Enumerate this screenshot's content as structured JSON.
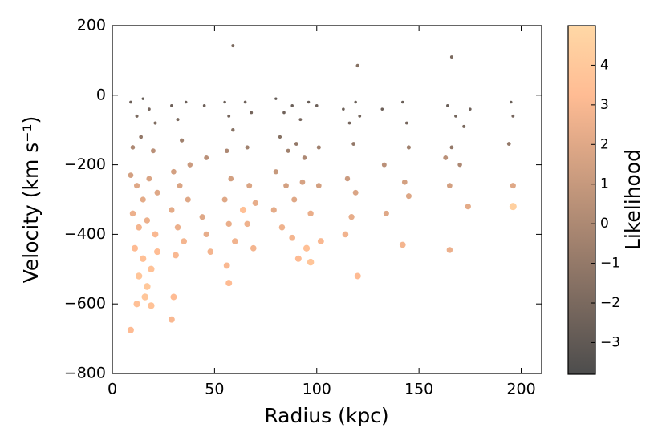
{
  "chart_data": {
    "type": "scatter",
    "xlabel": "Radius (kpc)",
    "ylabel": "Velocity (km s⁻¹)",
    "xlim": [
      0,
      210
    ],
    "xticks": [
      0,
      50,
      100,
      150,
      200
    ],
    "ylim": [
      -800,
      200
    ],
    "yticks": [
      {
        "value": -800,
        "label": "−800"
      },
      {
        "value": -600,
        "label": "−600"
      },
      {
        "value": -400,
        "label": "−400"
      },
      {
        "value": -200,
        "label": "−200"
      },
      0,
      200
    ],
    "colormap": "copper",
    "colorbar": {
      "label": "Likelihood",
      "lim": [
        -3.8,
        5.0
      ],
      "ticks": [
        {
          "value": -3,
          "label": "−3"
        },
        {
          "value": -2,
          "label": "−2"
        },
        {
          "value": -1,
          "label": "−1"
        },
        0,
        1,
        2,
        3,
        4
      ]
    },
    "x": [
      9,
      12,
      15,
      18,
      21,
      10,
      14,
      20,
      9,
      12,
      15,
      18,
      22,
      10,
      13,
      17,
      21,
      11,
      15,
      19,
      22,
      13,
      17,
      12,
      19,
      9,
      16,
      29,
      32,
      36,
      34,
      30,
      33,
      37,
      29,
      32,
      35,
      31,
      30,
      29,
      38,
      45,
      46,
      44,
      46,
      48,
      55,
      57,
      59,
      56,
      58,
      55,
      57,
      60,
      56,
      57,
      59,
      65,
      68,
      66,
      67,
      70,
      66,
      69,
      64,
      80,
      84,
      88,
      92,
      96,
      82,
      86,
      90,
      94,
      80,
      85,
      89,
      93,
      97,
      83,
      88,
      91,
      95,
      97,
      79,
      100,
      101,
      101,
      102,
      113,
      116,
      119,
      121,
      118,
      115,
      119,
      117,
      114,
      120,
      120,
      132,
      133,
      134,
      142,
      144,
      145,
      143,
      145,
      142,
      164,
      168,
      172,
      175,
      166,
      170,
      165,
      174,
      165,
      166,
      163,
      195,
      196,
      194,
      196,
      196
    ],
    "y": [
      -20,
      -60,
      -10,
      -40,
      -80,
      -150,
      -120,
      -160,
      -230,
      -260,
      -300,
      -240,
      -280,
      -340,
      -380,
      -360,
      -400,
      -440,
      -470,
      -500,
      -450,
      -520,
      -550,
      -600,
      -605,
      -675,
      -580,
      -30,
      -70,
      -20,
      -130,
      -220,
      -260,
      -300,
      -330,
      -380,
      -420,
      -460,
      -580,
      -645,
      -200,
      -30,
      -180,
      -350,
      -400,
      -450,
      -20,
      -60,
      -100,
      -160,
      -240,
      -300,
      -370,
      -420,
      -490,
      -540,
      142,
      -20,
      -50,
      -150,
      -260,
      -310,
      -370,
      -440,
      -330,
      -10,
      -50,
      -30,
      -70,
      -20,
      -120,
      -160,
      -140,
      -180,
      -220,
      -260,
      -300,
      -250,
      -340,
      -380,
      -410,
      -470,
      -440,
      -480,
      -330,
      -30,
      -150,
      -260,
      -420,
      -40,
      -80,
      -20,
      -60,
      -140,
      -240,
      -280,
      -350,
      -400,
      -520,
      85,
      -40,
      -200,
      -340,
      -20,
      -80,
      -150,
      -250,
      -290,
      -430,
      -30,
      -60,
      -90,
      -40,
      -150,
      -200,
      -260,
      -320,
      -445,
      110,
      -180,
      -20,
      -60,
      -140,
      -260,
      -320
    ],
    "likelihood": [
      -2.5,
      -2,
      -2.8,
      -2.2,
      -1.8,
      0,
      -1,
      0.5,
      1.5,
      2,
      2.2,
      1.8,
      2,
      2.5,
      2.8,
      2.5,
      3,
      3.2,
      3.5,
      3.6,
      3.3,
      3.8,
      4,
      3.5,
      3.6,
      3.2,
      3.9,
      -2.5,
      -2,
      -2.6,
      -0.5,
      1.5,
      1.8,
      2,
      2.2,
      2.5,
      2.8,
      3,
      3.2,
      3,
      1.2,
      -2.5,
      0.5,
      2,
      2.3,
      2.8,
      -2.6,
      -2.2,
      -1.5,
      0,
      1.5,
      2,
      2.4,
      2.7,
      3,
      3.2,
      -2,
      -2.5,
      -2.2,
      -0.5,
      1.8,
      2.3,
      2.6,
      2.8,
      3.5,
      -2.8,
      -2.4,
      -2.6,
      -2.2,
      -2.7,
      -1.5,
      -0.5,
      -1,
      0,
      1,
      1.5,
      2,
      1.6,
      2.4,
      2.6,
      2.8,
      3.2,
      3.5,
      3.8,
      2.2,
      -2.5,
      -0.5,
      1.5,
      3,
      -2.5,
      -2.2,
      -2.7,
      -2.3,
      -1,
      1.2,
      1.8,
      2.3,
      2.7,
      3.2,
      -1.5,
      -2.5,
      0.5,
      2,
      -2.6,
      -2.2,
      -0.5,
      1.5,
      1.9,
      2.8,
      -2.6,
      -2.3,
      -2,
      -2.5,
      -1,
      0,
      1.5,
      2.2,
      2.5,
      -2,
      0.5,
      -2.6,
      -2.2,
      -1,
      2,
      4.5
    ]
  }
}
